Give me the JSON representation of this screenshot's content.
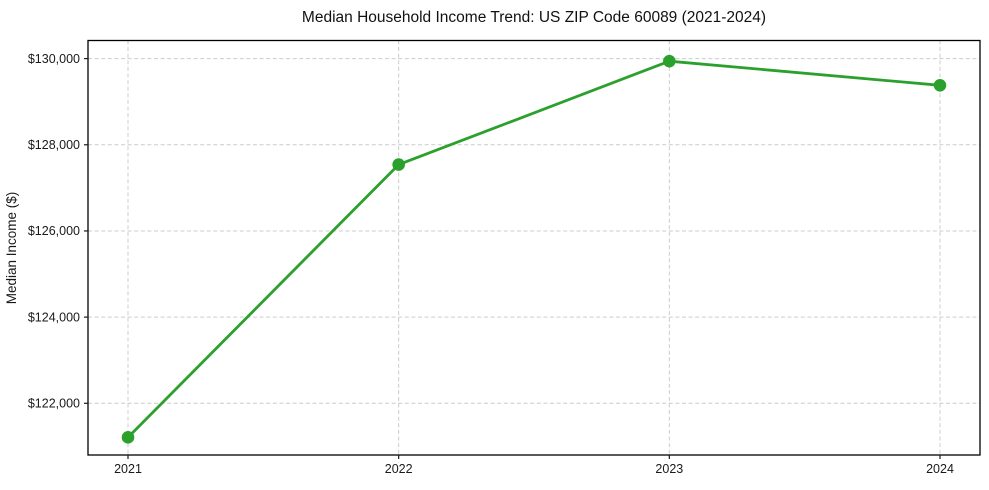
{
  "figure": {
    "title": "Median Household Income Trend: US ZIP Code 60089 (2021-2024)"
  },
  "chart_data": {
    "type": "line",
    "title": "Median Household Income Trend: US ZIP Code 60089 (2021-2024)",
    "xlabel": "",
    "ylabel": "Median Income ($)",
    "categories": [
      "2021",
      "2022",
      "2023",
      "2024"
    ],
    "series": [
      {
        "name": "Median Household Income",
        "values": [
          121210,
          127540,
          129940,
          129380
        ]
      }
    ],
    "ylim": [
      120800,
      130420
    ],
    "yticks": {
      "values": [
        122000,
        124000,
        126000,
        128000,
        130000
      ],
      "labels": [
        "$122,000",
        "$124,000",
        "$126,000",
        "$128,000",
        "$130,000"
      ]
    },
    "grid": true,
    "grid_style": "dashed",
    "legend": false,
    "legend_position": "none",
    "line_color": "#2ca02c",
    "marker": "circle",
    "grid_color": "#cccccc",
    "axes_color": "#000000",
    "background": "#ffffff"
  }
}
